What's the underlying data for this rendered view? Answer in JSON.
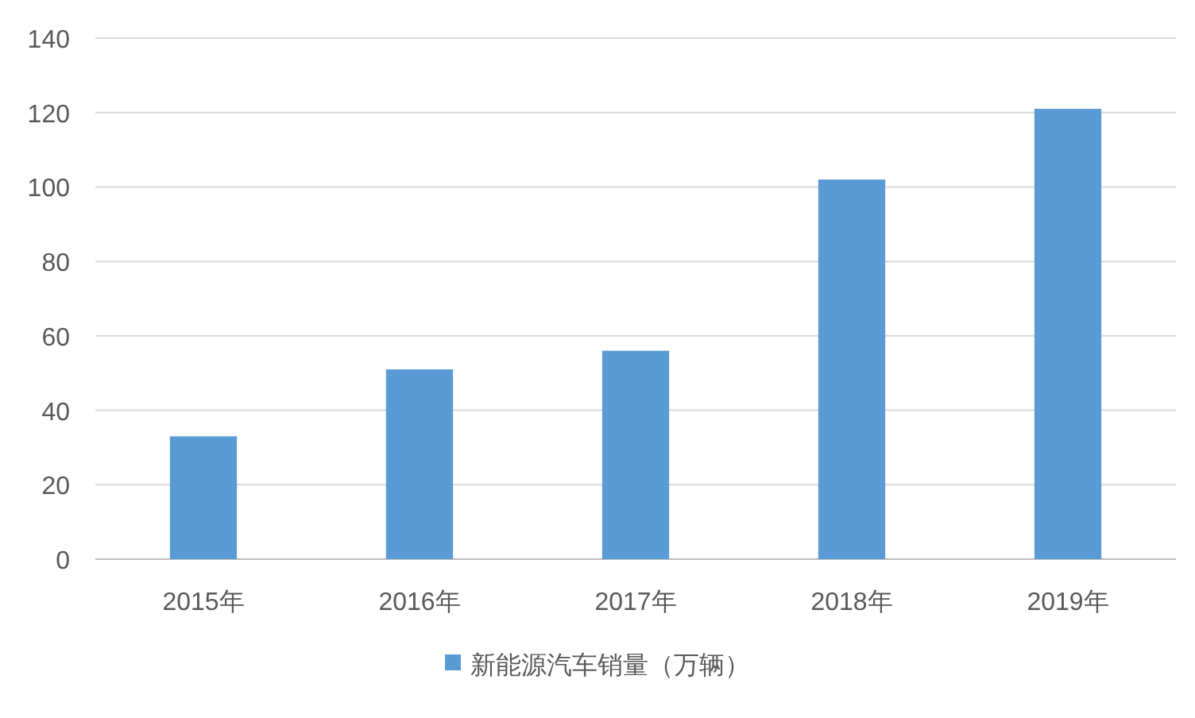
{
  "chart_data": {
    "type": "bar",
    "categories": [
      "2015年",
      "2016年",
      "2017年",
      "2018年",
      "2019年"
    ],
    "series": [
      {
        "name": "新能源汽车销量（万辆）",
        "color": "#5b9bd5",
        "values": [
          33,
          51,
          56,
          102,
          121
        ]
      }
    ],
    "ylim": [
      0,
      140
    ],
    "yticks": [
      0,
      20,
      40,
      60,
      80,
      100,
      120,
      140
    ],
    "grid": "y",
    "legend": "bottom"
  }
}
